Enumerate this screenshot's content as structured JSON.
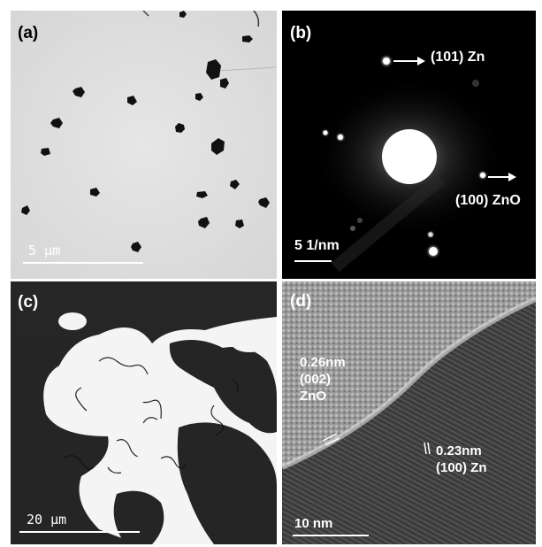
{
  "panels": {
    "a": {
      "label": "(a)",
      "scale_bar": "5  µm",
      "colors": {
        "background": "#dfdfdf",
        "particle": "#111111",
        "text": "#000000",
        "scale_bar": "#ffffff"
      }
    },
    "b": {
      "label": "(b)",
      "annotations": {
        "zn_101": "(101) Zn",
        "zno_100": "(100) ZnO"
      },
      "scale_bar": "5 1/nm",
      "colors": {
        "background": "#000000",
        "spot": "#ffffff",
        "text": "#ffffff"
      }
    },
    "c": {
      "label": "(c)",
      "scale_bar": "20  µm",
      "colors": {
        "background": "#f2f2f2",
        "fiber": "#0c0c0c",
        "text": "#ffffff"
      }
    },
    "d": {
      "label": "(d)",
      "annotations": {
        "zno_spacing": "0.26nm\n(002)\nZnO",
        "zn_spacing": "0.23nm\n(100) Zn"
      },
      "scale_bar": "10  nm",
      "colors": {
        "background": "#5a5a5a",
        "text": "#ffffff"
      }
    }
  }
}
